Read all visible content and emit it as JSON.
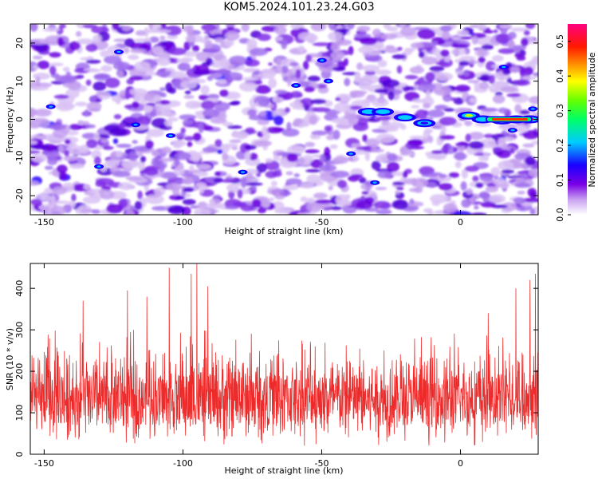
{
  "title": "KOM5.2024.101.23.24.G03",
  "chart_data": [
    {
      "type": "heatmap",
      "title": "KOM5.2024.101.23.24.G03",
      "xlabel": "Height of straight line (km)",
      "ylabel": "Frequency (Hz)",
      "xlim": [
        -155,
        28
      ],
      "ylim": [
        -25,
        25
      ],
      "x_ticks": [
        -150,
        -100,
        -50,
        0
      ],
      "y_ticks": [
        -20,
        -10,
        0,
        10,
        20
      ],
      "colorbar": {
        "label": "Normalized spectral amplitude",
        "range": [
          0.0,
          0.55
        ],
        "ticks": [
          0.0,
          0.1,
          0.2,
          0.3,
          0.4,
          0.5
        ],
        "colormap": [
          "#ffffff",
          "#7a00e6",
          "#0000ff",
          "#00ffff",
          "#00ff00",
          "#ffff00",
          "#ff7f00",
          "#ff0000",
          "#ff0080"
        ]
      },
      "signal_track": {
        "description": "dominant amplitude streak near 0 Hz",
        "x": [
          -33,
          -28,
          -20,
          -13,
          3,
          8,
          15,
          20,
          25
        ],
        "y": [
          2,
          2,
          0.5,
          -1,
          1,
          0,
          -0.3,
          0,
          0
        ],
        "amplitude": [
          0.2,
          0.2,
          0.2,
          0.15,
          0.3,
          0.25,
          0.4,
          0.45,
          0.5
        ]
      }
    },
    {
      "type": "line",
      "xlabel": "Height of straight line (km)",
      "ylabel": "SNR (10 * v/v)",
      "xlim": [
        -155,
        28
      ],
      "ylim": [
        0,
        460
      ],
      "x_ticks": [
        -150,
        -100,
        -50,
        0
      ],
      "y_ticks": [
        0,
        100,
        200,
        300,
        400
      ],
      "color": "#ee2b2b",
      "series_summary": {
        "baseline_mean": 130,
        "typical_min": 40,
        "typical_max": 300,
        "peaks": [
          {
            "x": -95,
            "y": 460
          },
          {
            "x": -105,
            "y": 450
          },
          {
            "x": -97,
            "y": 435
          },
          {
            "x": -91,
            "y": 405
          },
          {
            "x": -120,
            "y": 395
          },
          {
            "x": -136,
            "y": 370
          },
          {
            "x": -113,
            "y": 380
          },
          {
            "x": 27,
            "y": 435
          },
          {
            "x": 25,
            "y": 420
          },
          {
            "x": 20,
            "y": 400
          },
          {
            "x": 10,
            "y": 340
          }
        ]
      }
    }
  ]
}
